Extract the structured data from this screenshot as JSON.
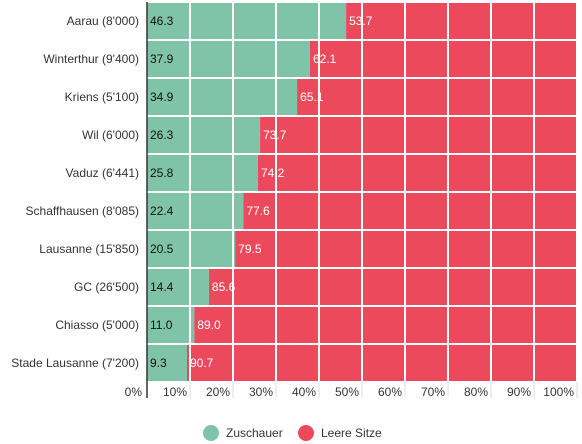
{
  "chart_data": {
    "type": "bar",
    "orientation": "horizontal",
    "stacked": true,
    "title": "",
    "xlabel": "",
    "ylabel": "",
    "xlim": [
      0,
      100
    ],
    "grid": true,
    "legend_position": "bottom",
    "categories": [
      "Aarau (8'000)",
      "Winterthur (9'400)",
      "Kriens (5'100)",
      "Wil (6'000)",
      "Vaduz (6'441)",
      "Schaffhausen (8'085)",
      "Lausanne (15'850)",
      "GC (26'500)",
      "Chiasso (5'000)",
      "Stade Lausanne (7'200)"
    ],
    "x_ticks": [
      "0%",
      "10%",
      "20%",
      "30%",
      "40%",
      "50%",
      "60%",
      "70%",
      "80%",
      "90%",
      "100%"
    ],
    "series": [
      {
        "name": "Zuschauer",
        "color": "#7fc4a8",
        "values": [
          46.3,
          37.9,
          34.9,
          26.3,
          25.8,
          22.4,
          20.5,
          14.4,
          11.0,
          9.3
        ],
        "labels": [
          "46.3",
          "37.9",
          "34.9",
          "26.3",
          "25.8",
          "22.4",
          "20.5",
          "14.4",
          "11.0",
          "9.3"
        ]
      },
      {
        "name": "Leere Sitze",
        "color": "#ec4a5c",
        "values": [
          53.7,
          62.1,
          65.1,
          73.7,
          74.2,
          77.6,
          79.5,
          85.6,
          89.0,
          90.7
        ],
        "labels": [
          "53.7",
          "62.1",
          "65.1",
          "73.7",
          "74.2",
          "77.6",
          "79.5",
          "85.6",
          "89.0",
          "90.7"
        ]
      }
    ]
  }
}
